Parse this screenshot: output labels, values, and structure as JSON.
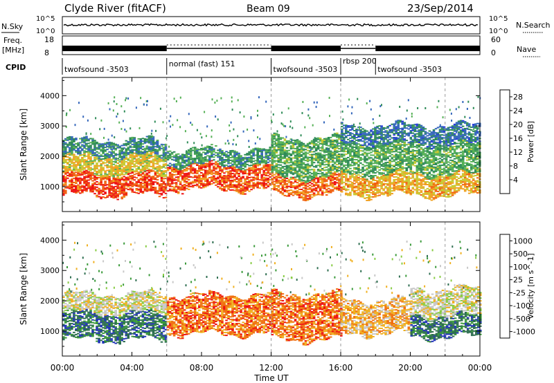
{
  "header": {
    "station": "Clyde River (fitACF)",
    "beam": "Beam 09",
    "date": "23/Sep/2014"
  },
  "summary": {
    "nsky_label": "N.Sky",
    "nsky_ticks": [
      "10^5",
      "10^0"
    ],
    "nsearch_label": "N.Search",
    "freq_label_1": "Freq.",
    "freq_label_2": "[MHz]",
    "freq_ticks": [
      "18",
      "8"
    ],
    "nave_label": "Nave",
    "nave_ticks": [
      "60",
      "0"
    ],
    "cpid_label": "CPID",
    "right_ticks_nsky": [
      "10^5",
      "10^0"
    ]
  },
  "cpid_segments": [
    {
      "label": "twofsound -3503",
      "start": 0,
      "end": 6
    },
    {
      "label": "normal (fast) 151",
      "start": 6,
      "end": 12
    },
    {
      "label": "twofsound -3503",
      "start": 12,
      "end": 16
    },
    {
      "label": "rbsp 200",
      "start": 16,
      "end": 18
    },
    {
      "label": "twofsound -3503",
      "start": 18,
      "end": 24
    }
  ],
  "chart_data": [
    {
      "type": "heatmap",
      "title": "",
      "xlabel": "Time UT",
      "ylabel": "Slant Range [km]",
      "xlim": [
        0,
        24
      ],
      "ylim": [
        180,
        4600
      ],
      "yticks": [
        1000,
        2000,
        3000,
        4000
      ],
      "colorbar": {
        "label": "Power [dB]",
        "ticks": [
          4,
          8,
          12,
          16,
          20,
          24,
          28
        ],
        "range": [
          0,
          30
        ],
        "colors": [
          "#2233dd",
          "#3366bb",
          "#2e8b57",
          "#55b055",
          "#c8c830",
          "#f0a020",
          "#f06010",
          "#ee1111"
        ]
      },
      "bands": [
        {
          "t0": 0.0,
          "t1": 6.0,
          "r0": 700,
          "r1": 1400,
          "value": 26
        },
        {
          "t0": 0.0,
          "t1": 6.0,
          "r0": 1400,
          "r1": 2000,
          "value": 18
        },
        {
          "t0": 0.0,
          "t1": 6.0,
          "r0": 2000,
          "r1": 2500,
          "value": 9
        },
        {
          "t0": 6.0,
          "t1": 12.0,
          "r0": 900,
          "r1": 1700,
          "value": 25
        },
        {
          "t0": 6.0,
          "t1": 12.0,
          "r0": 1700,
          "r1": 2200,
          "value": 10
        },
        {
          "t0": 12.0,
          "t1": 16.0,
          "r0": 700,
          "r1": 1300,
          "value": 24
        },
        {
          "t0": 12.0,
          "t1": 16.0,
          "r0": 1300,
          "r1": 2600,
          "value": 12
        },
        {
          "t0": 16.0,
          "t1": 24.0,
          "r0": 700,
          "r1": 1400,
          "value": 20
        },
        {
          "t0": 16.0,
          "t1": 24.0,
          "r0": 1400,
          "r1": 2400,
          "value": 12
        },
        {
          "t0": 16.0,
          "t1": 24.0,
          "r0": 2400,
          "r1": 3000,
          "value": 7
        }
      ]
    },
    {
      "type": "heatmap",
      "title": "",
      "xlabel": "Time UT",
      "ylabel": "Slant Range [km]",
      "xlim": [
        0,
        24
      ],
      "ylim": [
        180,
        4600
      ],
      "yticks": [
        1000,
        2000,
        3000,
        4000
      ],
      "colorbar": {
        "label": "Velocity [m s^-1]",
        "ticks": [
          "1000",
          "500",
          "100",
          "25",
          "-25",
          "-100",
          "-500",
          "-1000"
        ],
        "colors": [
          "#2233bb",
          "#2e6e50",
          "#3a9a3a",
          "#88cc44",
          "#c8c8c8",
          "#f0b020",
          "#f07010",
          "#ee1111"
        ]
      },
      "bands": [
        {
          "t0": 0.0,
          "t1": 6.0,
          "r0": 700,
          "r1": 1600,
          "value": "500"
        },
        {
          "t0": 0.0,
          "t1": 6.0,
          "r0": 1600,
          "r1": 2200,
          "value": "-25"
        },
        {
          "t0": 6.0,
          "t1": 12.0,
          "r0": 900,
          "r1": 2200,
          "value": "-500"
        },
        {
          "t0": 12.0,
          "t1": 16.0,
          "r0": 700,
          "r1": 2200,
          "value": "-500"
        },
        {
          "t0": 16.0,
          "t1": 20.0,
          "r0": 900,
          "r1": 2000,
          "value": "-100"
        },
        {
          "t0": 20.0,
          "t1": 24.0,
          "r0": 800,
          "r1": 1500,
          "value": "500"
        },
        {
          "t0": 20.0,
          "t1": 24.0,
          "r0": 1500,
          "r1": 2400,
          "value": "-25"
        }
      ]
    }
  ],
  "x_ticks": [
    "00:00",
    "04:00",
    "08:00",
    "12:00",
    "16:00",
    "20:00",
    "00:00"
  ],
  "xlabel": "Time UT"
}
